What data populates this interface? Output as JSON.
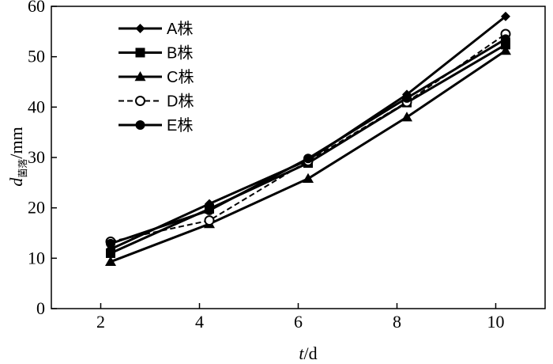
{
  "chart_data": {
    "type": "line",
    "x": [
      2.2,
      4.2,
      6.2,
      8.2,
      10.2
    ],
    "xlim": [
      1,
      11
    ],
    "ylim": [
      0,
      60
    ],
    "xticks": [
      "2",
      "4",
      "6",
      "8",
      "10"
    ],
    "yticks": [
      "0",
      "10",
      "20",
      "30",
      "40",
      "50",
      "60"
    ],
    "xlabel": {
      "italic": "t",
      "rest": "/d"
    },
    "ylabel": {
      "italic": "d",
      "subscript": "菌落",
      "rest": "/mm"
    },
    "legend_position": "top-left",
    "grid": false,
    "series": [
      {
        "name": "A株",
        "marker": "diamond",
        "dashed": false,
        "values": [
          11.8,
          20.8,
          29.5,
          42.5,
          58.0
        ]
      },
      {
        "name": "B株",
        "marker": "square",
        "dashed": false,
        "values": [
          11.0,
          19.8,
          28.9,
          40.9,
          52.4
        ]
      },
      {
        "name": "C株",
        "marker": "triangle",
        "dashed": false,
        "values": [
          9.3,
          16.8,
          25.8,
          38.0,
          51.2
        ]
      },
      {
        "name": "D株",
        "marker": "open-circle",
        "dashed": true,
        "values": [
          13.3,
          17.5,
          29.3,
          41.0,
          54.5
        ]
      },
      {
        "name": "E株",
        "marker": "filled-circle",
        "dashed": false,
        "values": [
          12.9,
          19.5,
          29.8,
          41.8,
          53.5
        ]
      }
    ]
  }
}
